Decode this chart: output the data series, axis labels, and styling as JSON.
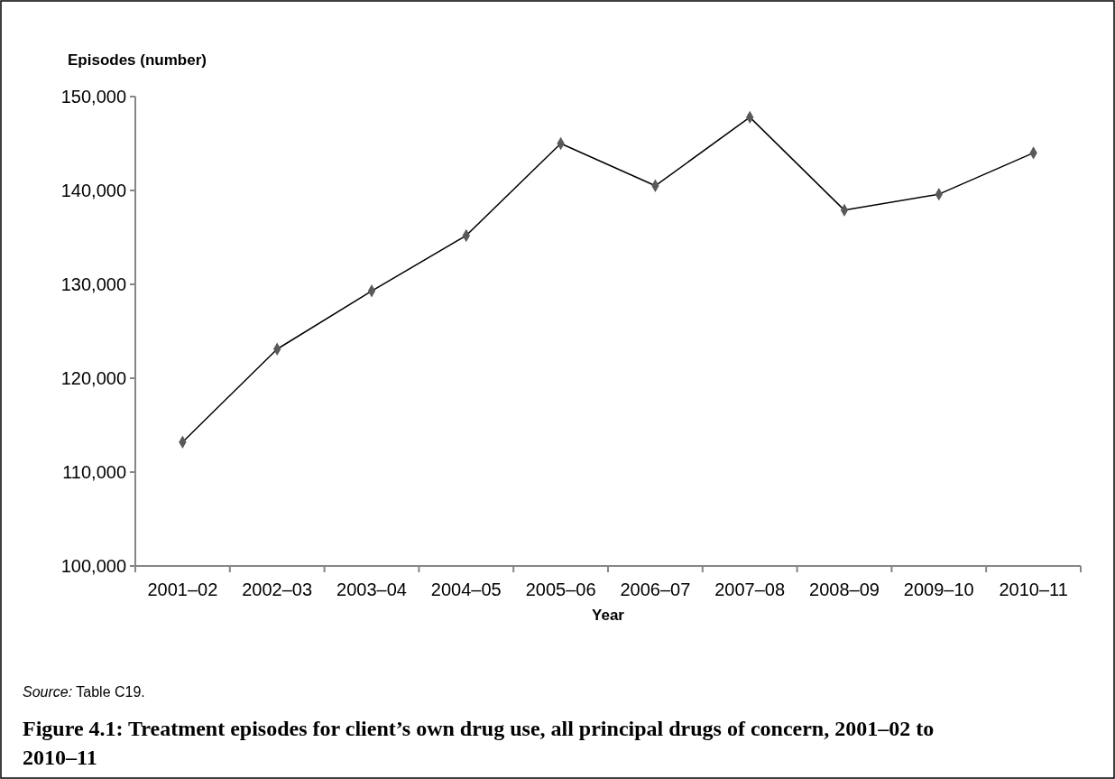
{
  "chart_data": {
    "type": "line",
    "title": "Figure 4.1: Treatment episodes for client’s own drug use, all principal drugs of concern, 2001–02 to 2010–11",
    "xlabel": "Year",
    "ylabel": "Episodes (number)",
    "categories": [
      "2001–02",
      "2002–03",
      "2003–04",
      "2004–05",
      "2005–06",
      "2006–07",
      "2007–08",
      "2008–09",
      "2009–10",
      "2010–11"
    ],
    "series": [
      {
        "color": "#000000",
        "values": [
          113200,
          123100,
          129300,
          135200,
          145000,
          140500,
          147800,
          137900,
          139600,
          144000
        ]
      }
    ],
    "marker": "diamond",
    "ylim": [
      100000,
      150000
    ],
    "yticks": [
      {
        "value": 100000,
        "label": "100,000"
      },
      {
        "value": 110000,
        "label": "110,000"
      },
      {
        "value": 120000,
        "label": "120,000"
      },
      {
        "value": 130000,
        "label": "130,000"
      },
      {
        "value": 140000,
        "label": "140,000"
      },
      {
        "value": 150000,
        "label": "150,000"
      }
    ],
    "grid": false,
    "annotations": [
      "Source: Table C19."
    ]
  }
}
